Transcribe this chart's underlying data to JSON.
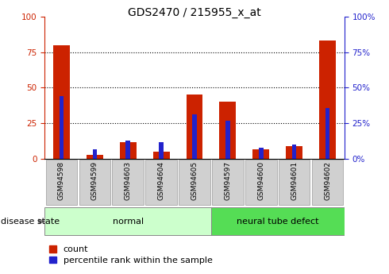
{
  "title": "GDS2470 / 215955_x_at",
  "samples": [
    "GSM94598",
    "GSM94599",
    "GSM94603",
    "GSM94604",
    "GSM94605",
    "GSM94597",
    "GSM94600",
    "GSM94601",
    "GSM94602"
  ],
  "count_values": [
    80,
    3,
    12,
    5,
    45,
    40,
    7,
    9,
    83
  ],
  "percentile_values": [
    44,
    7,
    13,
    12,
    31,
    27,
    8,
    10,
    36
  ],
  "groups": [
    {
      "label": "normal",
      "start": 0,
      "end": 5,
      "color": "#ccffcc"
    },
    {
      "label": "neural tube defect",
      "start": 5,
      "end": 9,
      "color": "#55dd55"
    }
  ],
  "ylim": [
    0,
    100
  ],
  "yticks": [
    0,
    25,
    50,
    75,
    100
  ],
  "count_color": "#cc2200",
  "percentile_color": "#2222cc",
  "left_axis_color": "#cc2200",
  "right_axis_color": "#2222cc",
  "title_fontsize": 10,
  "tick_label_fontsize": 7.5,
  "sample_label_fontsize": 6.5,
  "group_label_fontsize": 8,
  "legend_fontsize": 8,
  "disease_state_fontsize": 8,
  "red_bar_width": 0.5,
  "blue_bar_width": 0.13
}
